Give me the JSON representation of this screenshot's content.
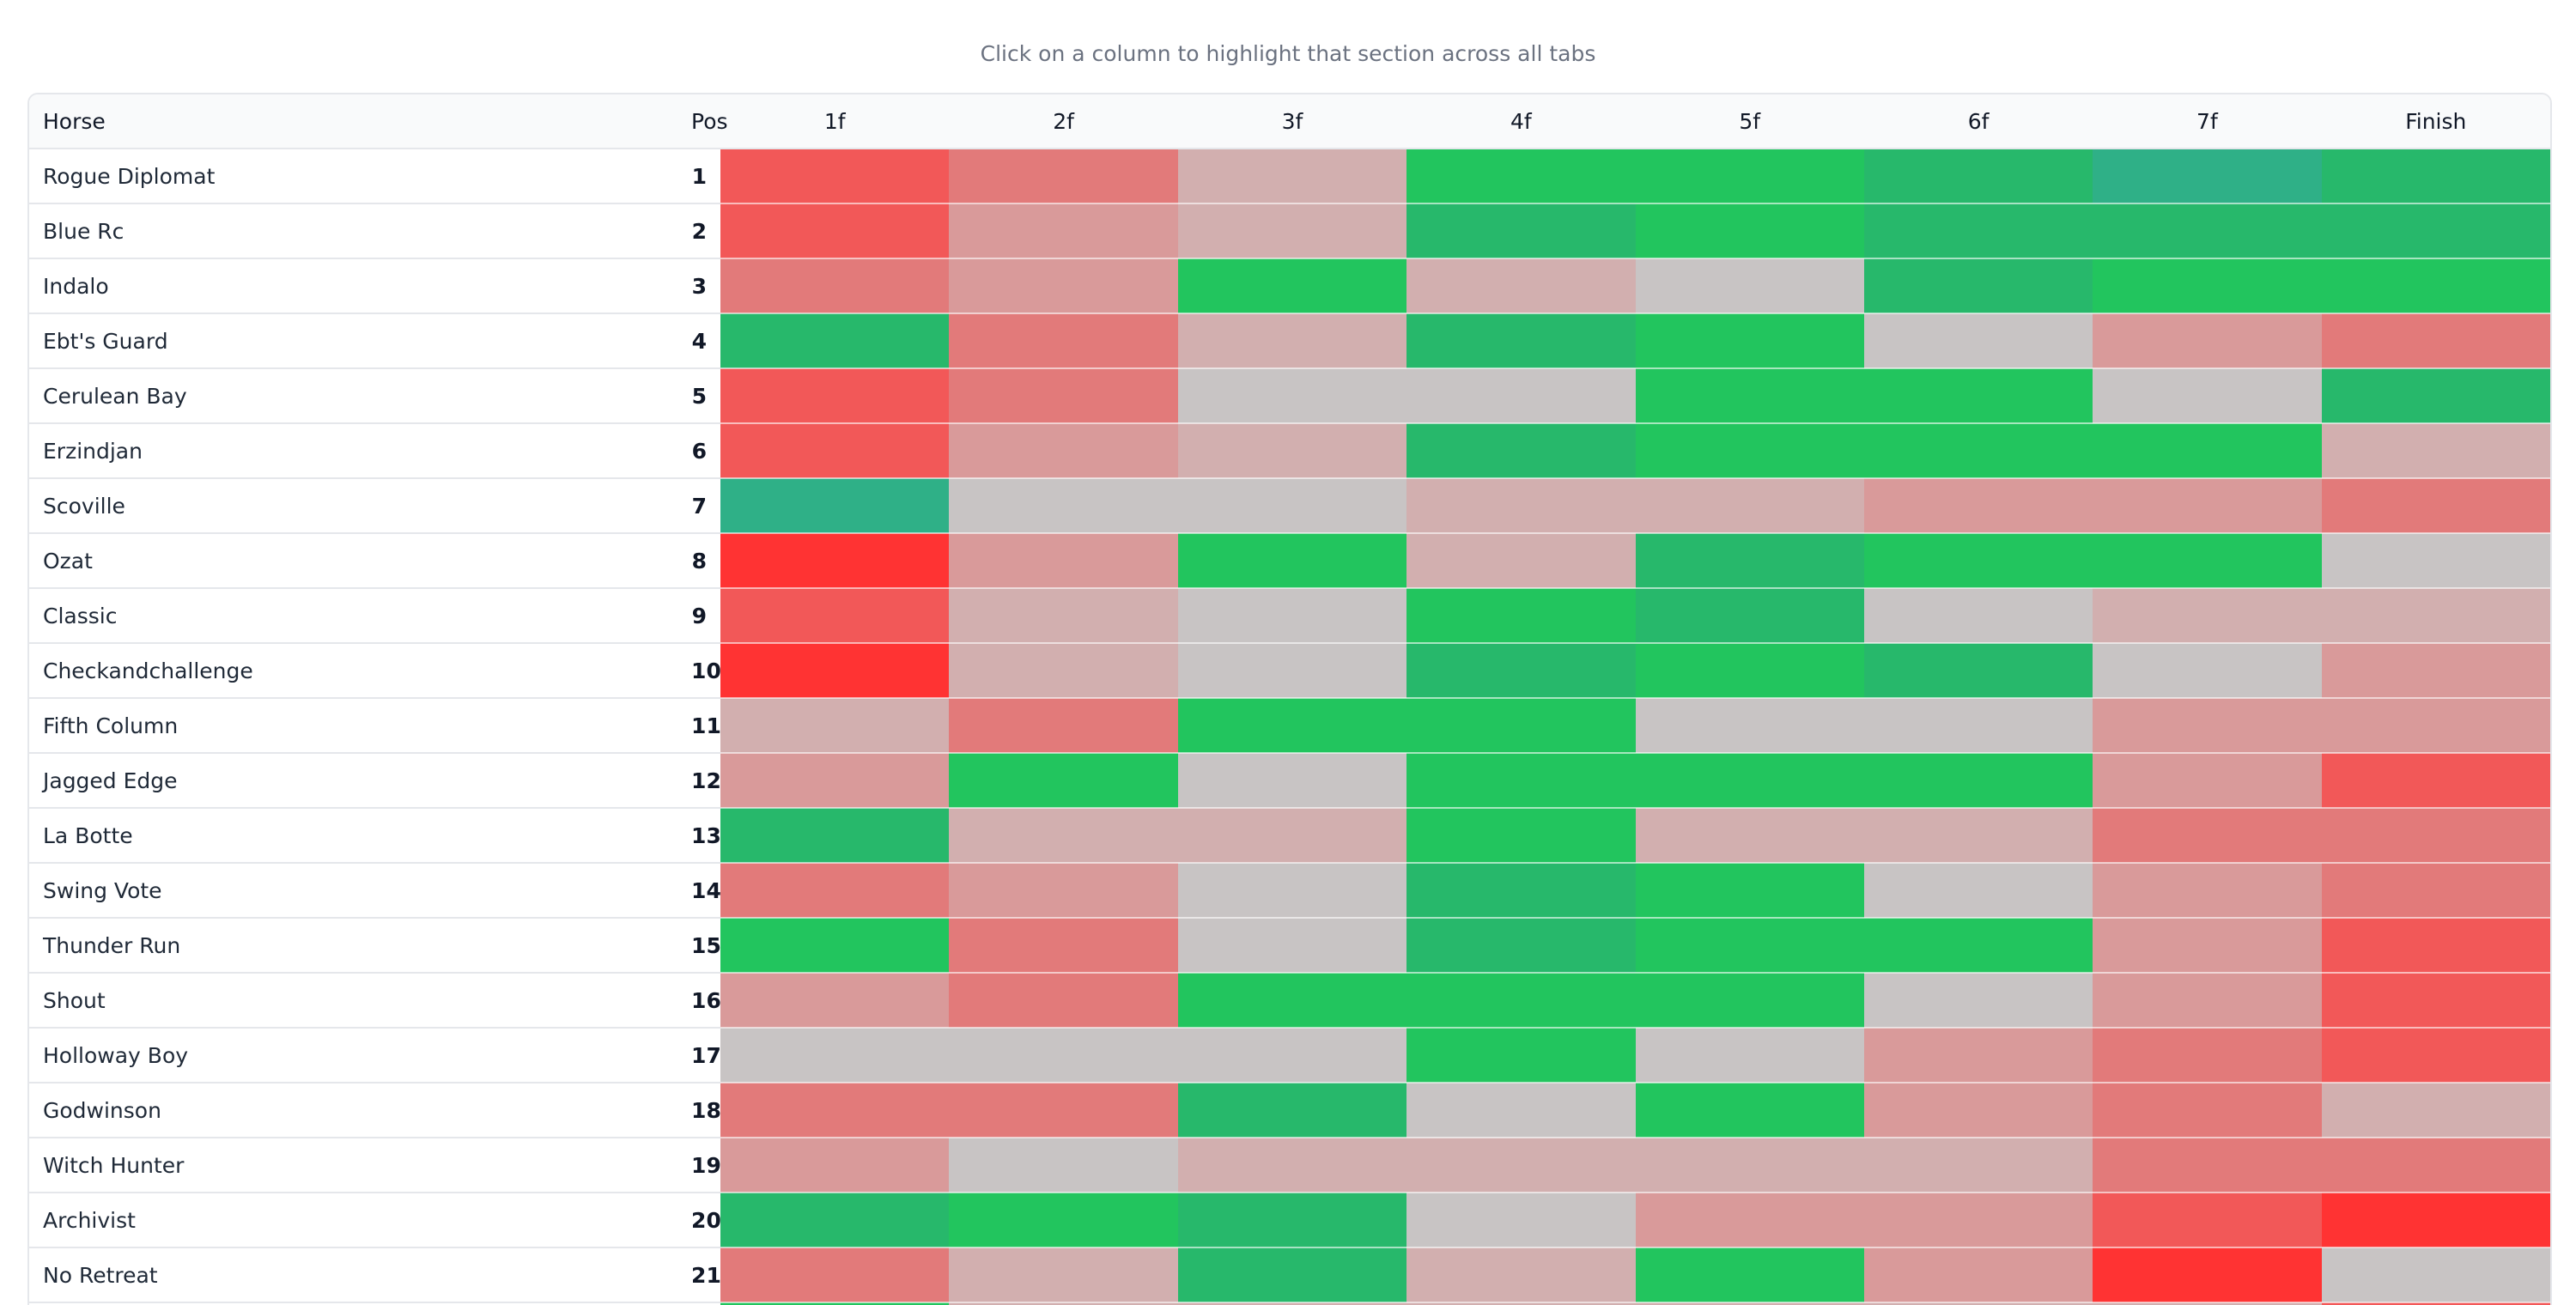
{
  "hint": "Click on a column to highlight that section across all tabs",
  "columns": {
    "horse": "Horse",
    "pos": "Pos",
    "segments": [
      "1f",
      "2f",
      "3f",
      "4f",
      "5f",
      "6f",
      "7f",
      "Finish"
    ]
  },
  "colors": {
    "R": "#ff3333",
    "r": "#f25858",
    "m": "#e27a7a",
    "p": "#d99a9a",
    "l": "#d2afaf",
    "g": "#c8c4c4",
    "G": "#22c55e",
    "E": "#27b86b",
    "T": "#2fb087"
  },
  "rows": [
    {
      "name": "Rogue Diplomat",
      "pos": "1",
      "cells": [
        "r",
        "m",
        "l",
        "G",
        "G",
        "E",
        "T",
        "E"
      ]
    },
    {
      "name": "Blue Rc",
      "pos": "2",
      "cells": [
        "r",
        "p",
        "l",
        "E",
        "G",
        "E",
        "E",
        "E"
      ]
    },
    {
      "name": "Indalo",
      "pos": "3",
      "cells": [
        "m",
        "p",
        "G",
        "l",
        "g",
        "E",
        "G",
        "G"
      ]
    },
    {
      "name": "Ebt's Guard",
      "pos": "4",
      "cells": [
        "E",
        "m",
        "l",
        "E",
        "G",
        "g",
        "p",
        "m"
      ]
    },
    {
      "name": "Cerulean Bay",
      "pos": "5",
      "cells": [
        "r",
        "m",
        "g",
        "g",
        "G",
        "G",
        "g",
        "E"
      ]
    },
    {
      "name": "Erzindjan",
      "pos": "6",
      "cells": [
        "r",
        "p",
        "l",
        "E",
        "G",
        "G",
        "G",
        "l"
      ]
    },
    {
      "name": "Scoville",
      "pos": "7",
      "cells": [
        "T",
        "g",
        "g",
        "l",
        "l",
        "p",
        "p",
        "m"
      ]
    },
    {
      "name": "Ozat",
      "pos": "8",
      "cells": [
        "R",
        "p",
        "G",
        "l",
        "E",
        "G",
        "G",
        "g"
      ]
    },
    {
      "name": "Classic",
      "pos": "9",
      "cells": [
        "r",
        "l",
        "g",
        "G",
        "E",
        "g",
        "l",
        "l"
      ]
    },
    {
      "name": "Checkandchallenge",
      "pos": "10",
      "cells": [
        "R",
        "l",
        "g",
        "E",
        "G",
        "E",
        "g",
        "p"
      ]
    },
    {
      "name": "Fifth Column",
      "pos": "11",
      "cells": [
        "l",
        "m",
        "G",
        "G",
        "g",
        "g",
        "p",
        "p"
      ]
    },
    {
      "name": "Jagged Edge",
      "pos": "12",
      "cells": [
        "p",
        "G",
        "g",
        "G",
        "G",
        "G",
        "p",
        "r"
      ]
    },
    {
      "name": "La Botte",
      "pos": "13",
      "cells": [
        "E",
        "l",
        "l",
        "G",
        "l",
        "l",
        "m",
        "m"
      ]
    },
    {
      "name": "Swing Vote",
      "pos": "14",
      "cells": [
        "m",
        "p",
        "g",
        "E",
        "G",
        "g",
        "p",
        "m"
      ]
    },
    {
      "name": "Thunder Run",
      "pos": "15",
      "cells": [
        "G",
        "m",
        "g",
        "E",
        "G",
        "G",
        "p",
        "r"
      ]
    },
    {
      "name": "Shout",
      "pos": "16",
      "cells": [
        "p",
        "m",
        "G",
        "G",
        "G",
        "g",
        "p",
        "r"
      ]
    },
    {
      "name": "Holloway Boy",
      "pos": "17",
      "cells": [
        "g",
        "g",
        "g",
        "G",
        "g",
        "p",
        "m",
        "r"
      ]
    },
    {
      "name": "Godwinson",
      "pos": "18",
      "cells": [
        "m",
        "m",
        "E",
        "g",
        "G",
        "p",
        "m",
        "l"
      ]
    },
    {
      "name": "Witch Hunter",
      "pos": "19",
      "cells": [
        "p",
        "g",
        "l",
        "l",
        "l",
        "l",
        "m",
        "m"
      ]
    },
    {
      "name": "Archivist",
      "pos": "20",
      "cells": [
        "E",
        "G",
        "E",
        "g",
        "p",
        "p",
        "r",
        "R"
      ]
    },
    {
      "name": "No Retreat",
      "pos": "21",
      "cells": [
        "m",
        "l",
        "E",
        "l",
        "G",
        "p",
        "R",
        "g"
      ]
    },
    {
      "name": "",
      "pos": "",
      "cells": [
        "G",
        "l",
        "l",
        "l",
        "l",
        "l",
        "l",
        "r"
      ]
    }
  ]
}
